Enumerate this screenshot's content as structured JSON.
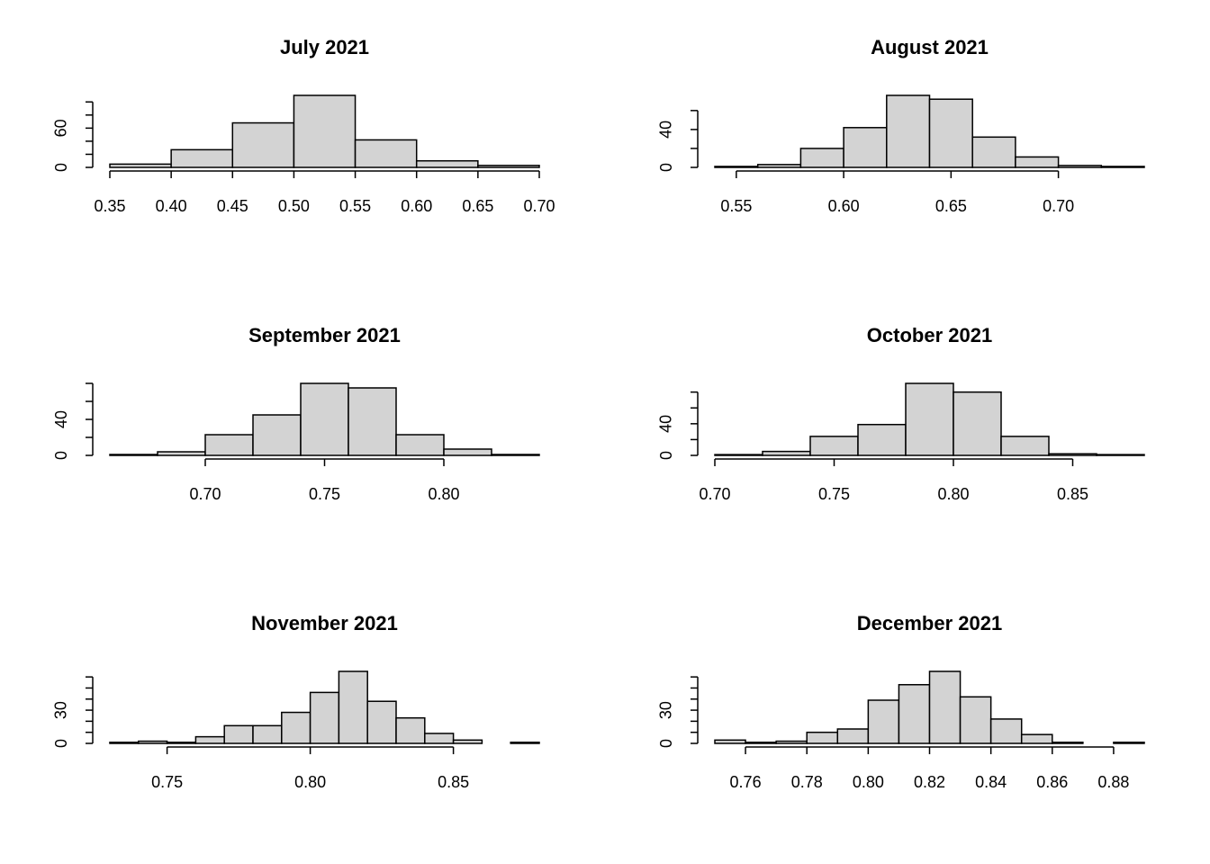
{
  "chart_data": [
    {
      "type": "histogram",
      "title": "July 2021",
      "color": "#d3d3d3",
      "bins": [
        0.35,
        0.4,
        0.45,
        0.5,
        0.55,
        0.6,
        0.65,
        0.7
      ],
      "values": [
        5,
        27,
        68,
        110,
        42,
        10,
        3
      ],
      "xlim": [
        0.35,
        0.7
      ],
      "xticks": [
        {
          "value": 0.35,
          "label": "0.35"
        },
        {
          "value": 0.4,
          "label": "0.40"
        },
        {
          "value": 0.45,
          "label": "0.45"
        },
        {
          "value": 0.5,
          "label": "0.50"
        },
        {
          "value": 0.55,
          "label": "0.55"
        },
        {
          "value": 0.6,
          "label": "0.60"
        },
        {
          "value": 0.65,
          "label": "0.65"
        },
        {
          "value": 0.7,
          "label": "0.70"
        }
      ],
      "ylim": [
        0,
        110
      ],
      "yticks": [
        0,
        60
      ],
      "yminor": [
        20,
        40,
        80,
        100
      ]
    },
    {
      "type": "histogram",
      "title": "August 2021",
      "color": "#d3d3d3",
      "bins": [
        0.54,
        0.56,
        0.58,
        0.6,
        0.62,
        0.64,
        0.66,
        0.68,
        0.7,
        0.72,
        0.74
      ],
      "values": [
        1,
        3,
        20,
        42,
        76,
        72,
        32,
        11,
        2,
        1
      ],
      "xlim": [
        0.54,
        0.74
      ],
      "xticks": [
        {
          "value": 0.55,
          "label": "0.55"
        },
        {
          "value": 0.6,
          "label": "0.60"
        },
        {
          "value": 0.65,
          "label": "0.65"
        },
        {
          "value": 0.7,
          "label": "0.70"
        }
      ],
      "ylim": [
        0,
        76
      ],
      "yticks": [
        0,
        40
      ],
      "yminor": [
        20,
        60
      ]
    },
    {
      "type": "histogram",
      "title": "September 2021",
      "color": "#d3d3d3",
      "bins": [
        0.66,
        0.68,
        0.7,
        0.72,
        0.74,
        0.76,
        0.78,
        0.8,
        0.82,
        0.84
      ],
      "values": [
        1,
        4,
        23,
        45,
        80,
        75,
        23,
        7,
        1
      ],
      "xlim": [
        0.66,
        0.84
      ],
      "xticks": [
        {
          "value": 0.7,
          "label": "0.70"
        },
        {
          "value": 0.75,
          "label": "0.75"
        },
        {
          "value": 0.8,
          "label": "0.80"
        }
      ],
      "ylim": [
        0,
        80
      ],
      "yticks": [
        0,
        40
      ],
      "yminor": [
        20,
        60,
        80
      ]
    },
    {
      "type": "histogram",
      "title": "October 2021",
      "color": "#d3d3d3",
      "bins": [
        0.7,
        0.72,
        0.74,
        0.76,
        0.78,
        0.8,
        0.82,
        0.84,
        0.86,
        0.88
      ],
      "values": [
        1,
        5,
        24,
        39,
        91,
        80,
        24,
        2,
        1
      ],
      "xlim": [
        0.7,
        0.88
      ],
      "xticks": [
        {
          "value": 0.7,
          "label": "0.70"
        },
        {
          "value": 0.75,
          "label": "0.75"
        },
        {
          "value": 0.8,
          "label": "0.80"
        },
        {
          "value": 0.85,
          "label": "0.85"
        }
      ],
      "ylim": [
        0,
        91
      ],
      "yticks": [
        0,
        40
      ],
      "yminor": [
        20,
        60,
        80
      ]
    },
    {
      "type": "histogram",
      "title": "November 2021",
      "color": "#d3d3d3",
      "bins": [
        0.73,
        0.74,
        0.75,
        0.76,
        0.77,
        0.78,
        0.79,
        0.8,
        0.81,
        0.82,
        0.83,
        0.84,
        0.85,
        0.86,
        0.87,
        0.88
      ],
      "values": [
        1,
        2,
        1,
        6,
        16,
        16,
        28,
        46,
        65,
        38,
        23,
        9,
        3,
        0,
        1
      ],
      "xlim": [
        0.73,
        0.88
      ],
      "xticks": [
        {
          "value": 0.75,
          "label": "0.75"
        },
        {
          "value": 0.8,
          "label": "0.80"
        },
        {
          "value": 0.85,
          "label": "0.85"
        }
      ],
      "ylim": [
        0,
        65
      ],
      "yticks": [
        0,
        30
      ],
      "yminor": [
        10,
        20,
        40,
        50,
        60
      ]
    },
    {
      "type": "histogram",
      "title": "December 2021",
      "color": "#d3d3d3",
      "bins": [
        0.75,
        0.76,
        0.77,
        0.78,
        0.79,
        0.8,
        0.81,
        0.82,
        0.83,
        0.84,
        0.85,
        0.86,
        0.87,
        0.88,
        0.89
      ],
      "values": [
        3,
        1,
        2,
        10,
        13,
        39,
        53,
        65,
        42,
        22,
        8,
        1,
        0,
        1
      ],
      "xlim": [
        0.75,
        0.89
      ],
      "xticks": [
        {
          "value": 0.76,
          "label": "0.76"
        },
        {
          "value": 0.78,
          "label": "0.78"
        },
        {
          "value": 0.8,
          "label": "0.80"
        },
        {
          "value": 0.82,
          "label": "0.82"
        },
        {
          "value": 0.84,
          "label": "0.84"
        },
        {
          "value": 0.86,
          "label": "0.86"
        },
        {
          "value": 0.88,
          "label": "0.88"
        }
      ],
      "ylim": [
        0,
        65
      ],
      "yticks": [
        0,
        30
      ],
      "yminor": [
        10,
        20,
        40,
        50,
        60
      ]
    }
  ]
}
